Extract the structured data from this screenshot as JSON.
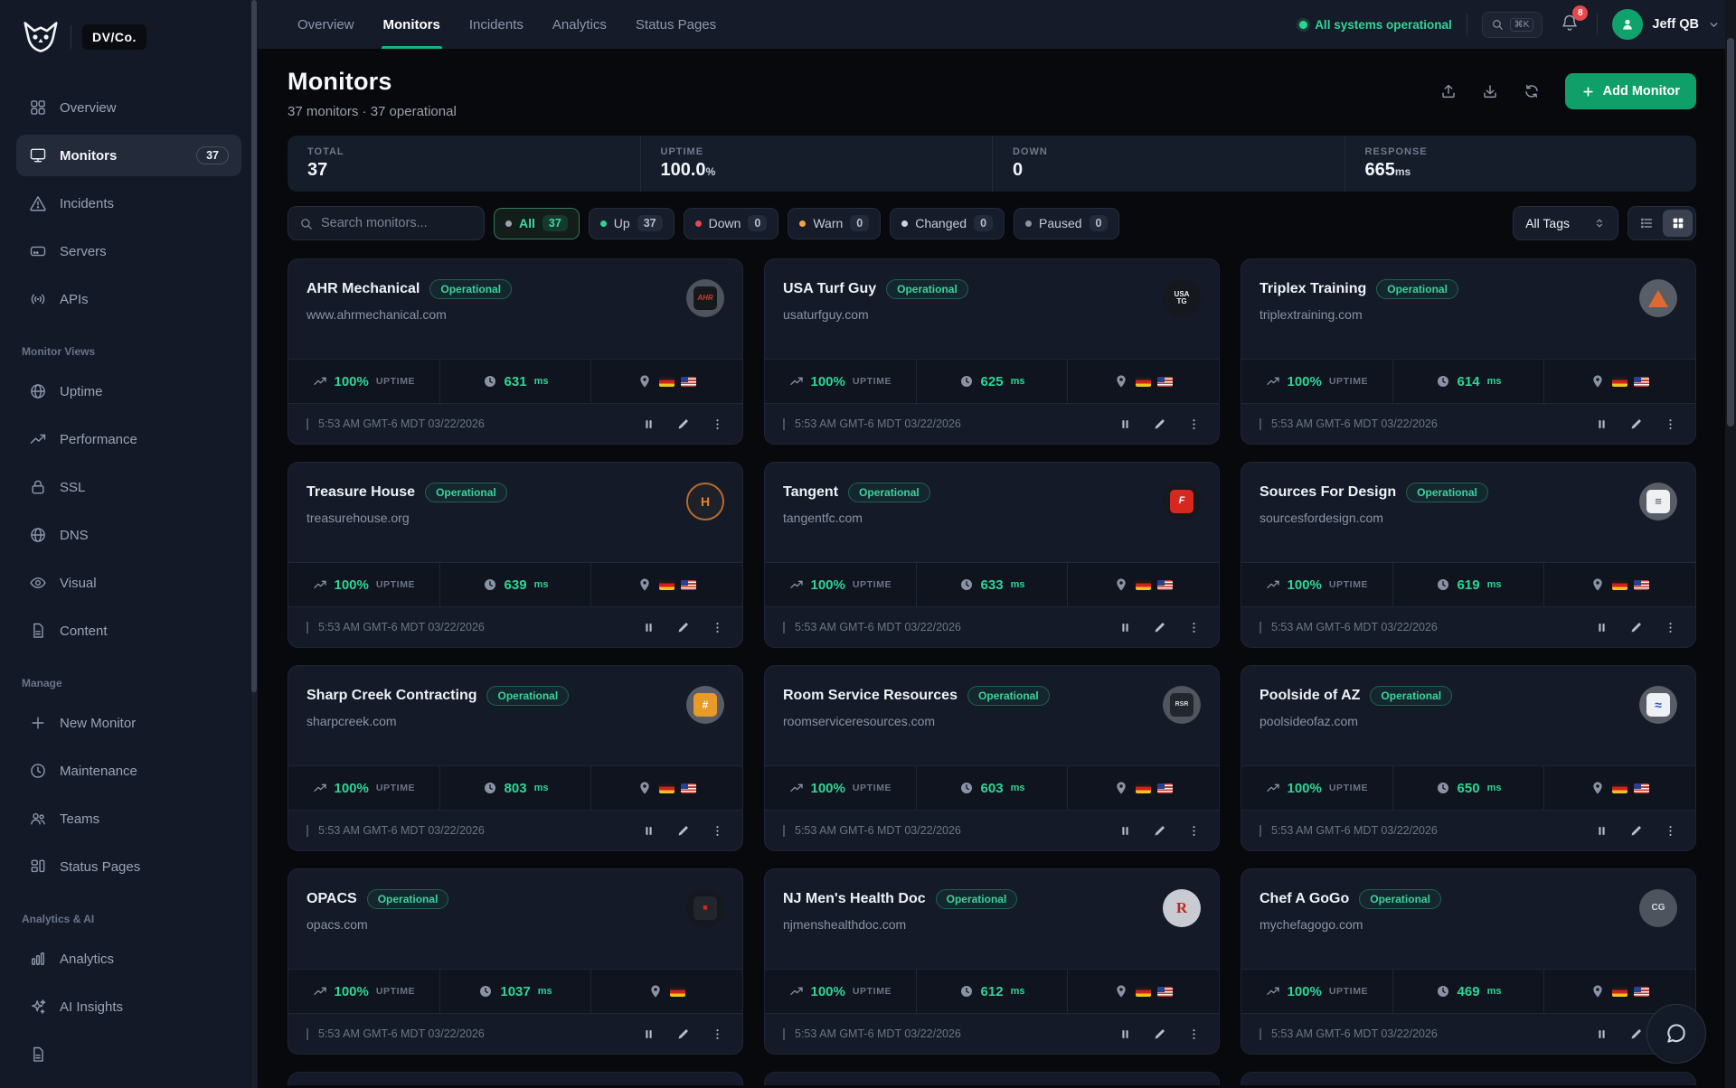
{
  "brand": {
    "name": "DV/Co."
  },
  "topnav": {
    "tabs": [
      {
        "label": "Overview",
        "active": false
      },
      {
        "label": "Monitors",
        "active": true
      },
      {
        "label": "Incidents",
        "active": false
      },
      {
        "label": "Analytics",
        "active": false
      },
      {
        "label": "Status Pages",
        "active": false
      }
    ],
    "status_text": "All systems operational",
    "search_shortcut": "⌘K",
    "notification_count": "8",
    "user_name": "Jeff QB"
  },
  "sidebar": {
    "main_items": [
      {
        "icon": "grid",
        "label": "Overview",
        "active": false,
        "badge": ""
      },
      {
        "icon": "monitor",
        "label": "Monitors",
        "active": true,
        "badge": "37"
      },
      {
        "icon": "warning",
        "label": "Incidents",
        "active": false,
        "badge": ""
      },
      {
        "icon": "server",
        "label": "Servers",
        "active": false,
        "badge": ""
      },
      {
        "icon": "broadcast",
        "label": "APIs",
        "active": false,
        "badge": ""
      }
    ],
    "sections": [
      {
        "label": "Monitor Views",
        "items": [
          {
            "icon": "globe",
            "label": "Uptime"
          },
          {
            "icon": "trend",
            "label": "Performance"
          },
          {
            "icon": "lock",
            "label": "SSL"
          },
          {
            "icon": "globe",
            "label": "DNS"
          },
          {
            "icon": "eye",
            "label": "Visual"
          },
          {
            "icon": "doc",
            "label": "Content"
          }
        ]
      },
      {
        "label": "Manage",
        "items": [
          {
            "icon": "plus",
            "label": "New Monitor"
          },
          {
            "icon": "clock",
            "label": "Maintenance"
          },
          {
            "icon": "people",
            "label": "Teams"
          },
          {
            "icon": "layout",
            "label": "Status Pages"
          }
        ]
      },
      {
        "label": "Analytics & AI",
        "items": [
          {
            "icon": "bars",
            "label": "Analytics"
          },
          {
            "icon": "sparkles",
            "label": "AI Insights"
          },
          {
            "icon": "doc",
            "label": ""
          }
        ]
      }
    ]
  },
  "header": {
    "title": "Monitors",
    "subtitle": "37 monitors · 37 operational",
    "add_label": "Add Monitor"
  },
  "stats": [
    {
      "label": "TOTAL",
      "value": "37",
      "suffix": ""
    },
    {
      "label": "UPTIME",
      "value": "100.0",
      "suffix": "%"
    },
    {
      "label": "DOWN",
      "value": "0",
      "suffix": ""
    },
    {
      "label": "RESPONSE",
      "value": "665",
      "suffix": "ms"
    }
  ],
  "filters": {
    "search_placeholder": "Search monitors...",
    "pills": [
      {
        "label": "All",
        "count": "37",
        "dot": "#9aa3b5",
        "active": true
      },
      {
        "label": "Up",
        "count": "37",
        "dot": "#2dd48f",
        "active": false
      },
      {
        "label": "Down",
        "count": "0",
        "dot": "#e5484d",
        "active": false
      },
      {
        "label": "Warn",
        "count": "0",
        "dot": "#f2a33c",
        "active": false
      },
      {
        "label": "Changed",
        "count": "0",
        "dot": "#ccd4e0",
        "active": false
      },
      {
        "label": "Paused",
        "count": "0",
        "dot": "#8a93a5",
        "active": false
      }
    ],
    "tags_label": "All Tags"
  },
  "monitors": [
    {
      "name": "AHR Mechanical",
      "url": "www.ahrmechanical.com",
      "status": "Operational",
      "uptime": "100%",
      "uptime_label": "UPTIME",
      "response": "631",
      "unit": "ms",
      "flags": [
        "de",
        "us"
      ],
      "time": "5:53 AM GMT-6 MDT 03/22/2026",
      "fav": {
        "bg": "#4e545e",
        "box": "#17181c",
        "label": "AHR",
        "fg": "#d6392c",
        "size": 8,
        "bold": true,
        "italic": true
      }
    },
    {
      "name": "USA Turf Guy",
      "url": "usaturfguy.com",
      "status": "Operational",
      "uptime": "100%",
      "uptime_label": "UPTIME",
      "response": "625",
      "unit": "ms",
      "flags": [
        "de",
        "us"
      ],
      "time": "5:53 AM GMT-6 MDT 03/22/2026",
      "fav": {
        "bg": "#15181d",
        "label": "USA TG",
        "fg": "#f3f4f6",
        "size": 8,
        "bold": true,
        "wrap": true
      }
    },
    {
      "name": "Triplex Training",
      "url": "triplextraining.com",
      "status": "Operational",
      "uptime": "100%",
      "uptime_label": "UPTIME",
      "response": "614",
      "unit": "ms",
      "flags": [
        "de",
        "us"
      ],
      "time": "5:53 AM GMT-6 MDT 03/22/2026",
      "fav": {
        "bg": "#585d66",
        "tri": "#dd6a32"
      }
    },
    {
      "name": "Treasure House",
      "url": "treasurehouse.org",
      "status": "Operational",
      "uptime": "100%",
      "uptime_label": "UPTIME",
      "response": "639",
      "unit": "ms",
      "flags": [
        "de",
        "us"
      ],
      "time": "5:53 AM GMT-6 MDT 03/22/2026",
      "fav": {
        "bg": "#1d2129",
        "label": "H",
        "fg": "#e8822e",
        "size": 14,
        "bold": true,
        "ring": "#b96a28"
      }
    },
    {
      "name": "Tangent",
      "url": "tangentfc.com",
      "status": "Operational",
      "uptime": "100%",
      "uptime_label": "UPTIME",
      "response": "633",
      "unit": "ms",
      "flags": [
        "de",
        "us"
      ],
      "time": "5:53 AM GMT-6 MDT 03/22/2026",
      "fav": {
        "bg": "#15181d",
        "box": "#d7281f",
        "label": "F",
        "fg": "#ffffff",
        "size": 11,
        "bold": true,
        "italic": true
      }
    },
    {
      "name": "Sources For Design",
      "url": "sourcesfordesign.com",
      "status": "Operational",
      "uptime": "100%",
      "uptime_label": "UPTIME",
      "response": "619",
      "unit": "ms",
      "flags": [
        "de",
        "us"
      ],
      "time": "5:53 AM GMT-6 MDT 03/22/2026",
      "fav": {
        "bg": "#585d66",
        "box": "#eef0f2",
        "label": "≡",
        "fg": "#474d58",
        "size": 13,
        "bold": true
      }
    },
    {
      "name": "Sharp Creek Contracting",
      "url": "sharpcreek.com",
      "status": "Operational",
      "uptime": "100%",
      "uptime_label": "UPTIME",
      "response": "803",
      "unit": "ms",
      "flags": [
        "de",
        "us"
      ],
      "time": "5:53 AM GMT-6 MDT 03/22/2026",
      "fav": {
        "bg": "#585d66",
        "box": "#e89b27",
        "label": "#",
        "fg": "#ffffff",
        "size": 12,
        "bold": true
      }
    },
    {
      "name": "Room Service Resources",
      "url": "roomserviceresources.com",
      "status": "Operational",
      "uptime": "100%",
      "uptime_label": "UPTIME",
      "response": "603",
      "unit": "ms",
      "flags": [
        "de",
        "us"
      ],
      "time": "5:53 AM GMT-6 MDT 03/22/2026",
      "fav": {
        "bg": "#50555e",
        "box": "#22262d",
        "label": "RSR",
        "fg": "#d9dce1",
        "size": 7,
        "bold": true
      }
    },
    {
      "name": "Poolside of AZ",
      "url": "poolsideofaz.com",
      "status": "Operational",
      "uptime": "100%",
      "uptime_label": "UPTIME",
      "response": "650",
      "unit": "ms",
      "flags": [
        "de",
        "us"
      ],
      "time": "5:53 AM GMT-6 MDT 03/22/2026",
      "fav": {
        "bg": "#585d66",
        "box": "#edf0f4",
        "label": "≈",
        "fg": "#2456d4",
        "size": 14,
        "bold": true
      }
    },
    {
      "name": "OPACS",
      "url": "opacs.com",
      "status": "Operational",
      "uptime": "100%",
      "uptime_label": "UPTIME",
      "response": "1037",
      "unit": "ms",
      "flags": [
        "de"
      ],
      "time": "5:53 AM GMT-6 MDT 03/22/2026",
      "fav": {
        "bg": "#15181d",
        "box": "#23262d",
        "label": "■",
        "fg": "#d7281f",
        "size": 9
      }
    },
    {
      "name": "NJ Men's Health Doc",
      "url": "njmenshealthdoc.com",
      "status": "Operational",
      "uptime": "100%",
      "uptime_label": "UPTIME",
      "response": "612",
      "unit": "ms",
      "flags": [
        "de",
        "us"
      ],
      "time": "5:53 AM GMT-6 MDT 03/22/2026",
      "fav": {
        "bg": "#c8ccd2",
        "label": "R",
        "fg": "#c1271d",
        "size": 17,
        "bold": true,
        "serif": true
      }
    },
    {
      "name": "Chef A GoGo",
      "url": "mychefagogo.com",
      "status": "Operational",
      "uptime": "100%",
      "uptime_label": "UPTIME",
      "response": "469",
      "unit": "ms",
      "flags": [
        "de",
        "us"
      ],
      "time": "5:53 AM GMT-6 MDT 03/22/2026",
      "fav": {
        "bg": "#4e545e",
        "label": "CG",
        "fg": "#d6d9de",
        "size": 10,
        "bold": true
      }
    }
  ]
}
